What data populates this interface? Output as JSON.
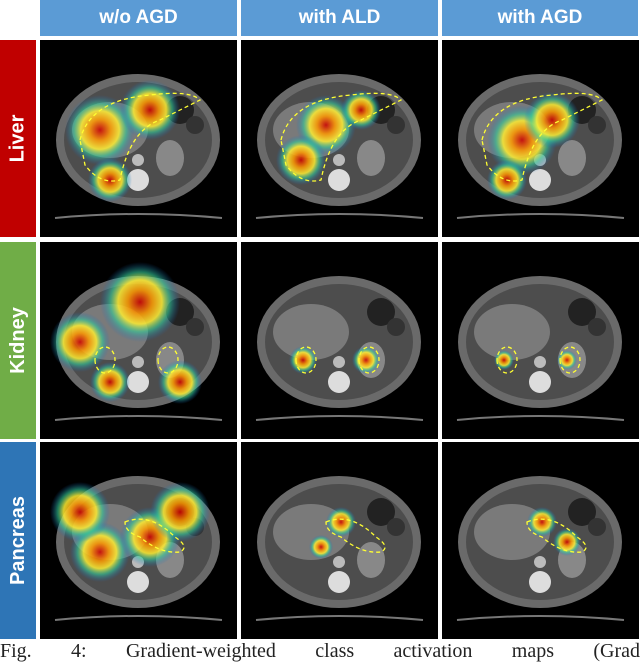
{
  "columns": [
    "w/o AGD",
    "with ALD",
    "with AGD"
  ],
  "rows": [
    "Liver",
    "Kidney",
    "Pancreas"
  ],
  "caption": "Fig. 4: Gradient-weighted class activation maps (Grad"
}
